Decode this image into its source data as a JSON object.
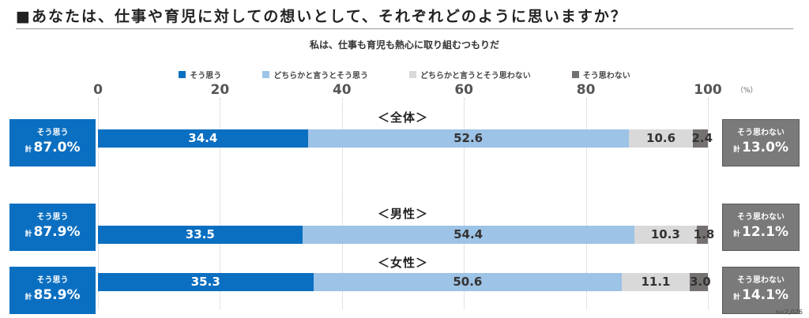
{
  "title": "■あなたは、仕事や育児に対しての想いとして、それぞれどのように思いますか？",
  "subtitle": "私は、仕事も育児も熱心に取り組むつもりだ",
  "note": "n=2,026",
  "chart_data": {
    "type": "bar",
    "orientation": "horizontal-stacked",
    "title": "私は、仕事も育児も熱心に取り組むつもりだ",
    "unit_label": "（%）",
    "xlim": [
      0,
      100
    ],
    "x_ticks": [
      "0",
      "20",
      "40",
      "60",
      "80",
      "100"
    ],
    "legend": [
      "そう思う",
      "どちらかと言うとそう思う",
      "どちらかと言うとそう思わない",
      "そう思わない"
    ],
    "colors": [
      "#0b6fc1",
      "#9dc3e6",
      "#d9d9d9",
      "#767171"
    ],
    "categories": [
      "＜全体＞",
      "＜男性＞",
      "＜女性＞"
    ],
    "series": [
      {
        "name": "そう思う",
        "values": [
          34.4,
          33.5,
          35.3
        ]
      },
      {
        "name": "どちらかと言うとそう思う",
        "values": [
          52.6,
          54.4,
          50.6
        ]
      },
      {
        "name": "どちらかと言うとそう思わない",
        "values": [
          10.6,
          10.3,
          11.1
        ]
      },
      {
        "name": "そう思わない",
        "values": [
          2.4,
          1.8,
          3.0
        ]
      }
    ],
    "value_labels": [
      [
        "34.4",
        "52.6",
        "10.6",
        "2.4"
      ],
      [
        "33.5",
        "54.4",
        "10.3",
        "1.8"
      ],
      [
        "35.3",
        "50.6",
        "11.1",
        "3.0"
      ]
    ],
    "totals": {
      "agree_label": "そう思う",
      "disagree_label": "そう思わない",
      "prefix": "計",
      "agree": [
        "87.0%",
        "87.9%",
        "85.9%"
      ],
      "disagree": [
        "13.0%",
        "12.1%",
        "14.1%"
      ]
    }
  }
}
